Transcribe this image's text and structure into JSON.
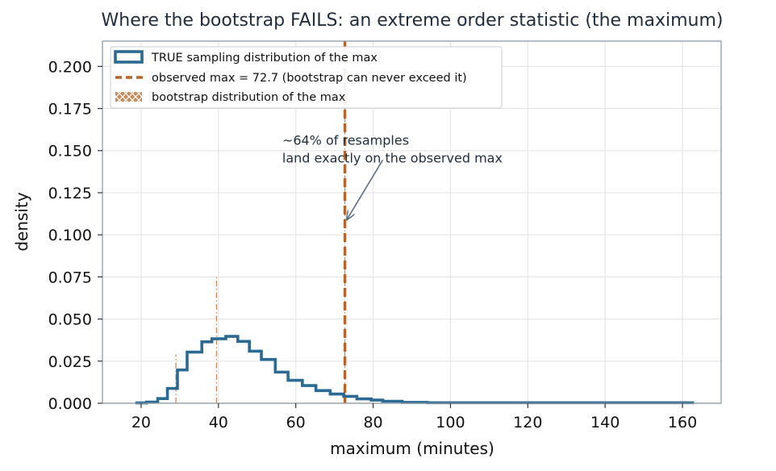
{
  "chart_data": {
    "type": "step-histogram",
    "title": "Where the bootstrap FAILS: an extreme order statistic (the maximum)",
    "xlabel": "maximum (minutes)",
    "ylabel": "density",
    "xlim": [
      10,
      170
    ],
    "ylim": [
      0,
      0.215
    ],
    "x_ticks": [
      20,
      40,
      60,
      80,
      100,
      120,
      140,
      160
    ],
    "y_ticks": [
      0.0,
      0.025,
      0.05,
      0.075,
      0.1,
      0.125,
      0.15,
      0.175,
      0.2
    ],
    "x_tick_labels": [
      "20",
      "40",
      "60",
      "80",
      "100",
      "120",
      "140",
      "160"
    ],
    "y_tick_labels": [
      "0.000",
      "0.025",
      "0.050",
      "0.075",
      "0.100",
      "0.125",
      "0.150",
      "0.175",
      "0.200"
    ],
    "grid": true,
    "legend_position": "top-left",
    "series": [
      {
        "name": "TRUE sampling distribution of the max",
        "kind": "step",
        "color": "#2b6a93",
        "bin_edges": [
          18.5,
          21.4,
          24.3,
          26.8,
          29.4,
          31.9,
          35.7,
          38.3,
          41.9,
          45.0,
          48.0,
          51.1,
          54.7,
          58.0,
          61.7,
          65.2,
          68.9,
          72.4,
          75.8,
          79.5,
          82.5,
          87.5,
          94.0,
          163.0
        ],
        "densities": [
          0.0002,
          0.0007,
          0.0028,
          0.0088,
          0.0198,
          0.0304,
          0.0365,
          0.0383,
          0.0397,
          0.0367,
          0.0309,
          0.026,
          0.0185,
          0.0136,
          0.0105,
          0.0075,
          0.0055,
          0.0041,
          0.0026,
          0.0019,
          0.0012,
          0.0005,
          0.0003
        ]
      },
      {
        "name": "observed max = 72.7 (bootstrap can never exceed it)",
        "kind": "vline",
        "color": "#b8642a",
        "x": 72.7
      },
      {
        "name": "bootstrap distribution of the max",
        "kind": "spikes",
        "color": "#c9895a",
        "points": [
          {
            "x": 29.0,
            "density": 0.029
          },
          {
            "x": 39.5,
            "density": 0.075
          },
          {
            "x": 72.7,
            "density": 0.208
          }
        ]
      }
    ],
    "annotation": {
      "lines": [
        "~64% of resamples",
        "land exactly on the observed max"
      ],
      "text_x": 56.5,
      "text_y": 0.1535,
      "arrow_from": [
        82.5,
        0.1445
      ],
      "arrow_to": [
        73.2,
        0.109
      ]
    }
  },
  "colors": {
    "true_dist": "#2b6a93",
    "observed_max": "#b8642a",
    "bootstrap": "#c9895a",
    "frame": "#8c9aa6",
    "annotation_arrow": "#5a6e82"
  }
}
